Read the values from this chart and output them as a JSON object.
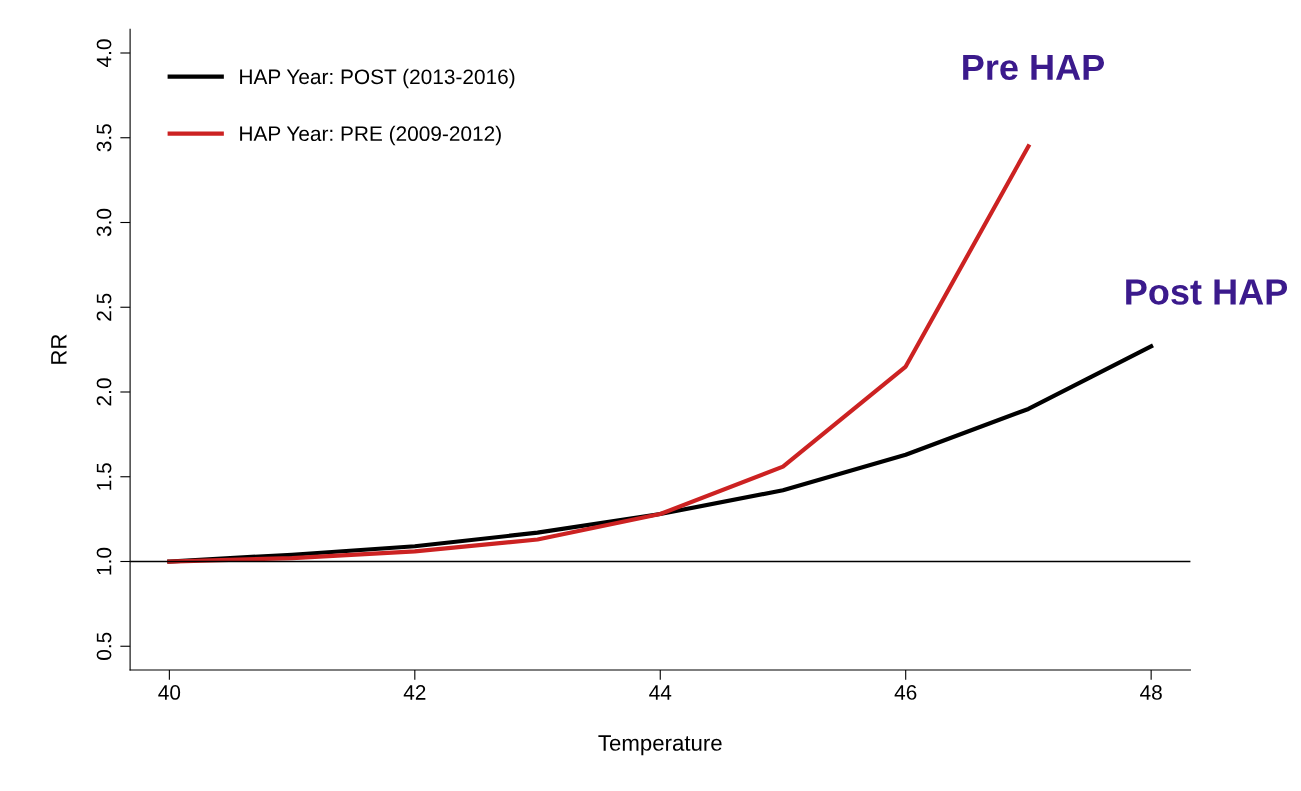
{
  "chart_data": {
    "type": "line",
    "xlabel": "Temperature",
    "ylabel": "RR",
    "x": [
      40,
      41,
      42,
      43,
      44,
      45,
      46,
      47,
      48
    ],
    "series": [
      {
        "name": "HAP Year: POST (2013-2016)",
        "color": "#000000",
        "values": [
          1.0,
          1.04,
          1.09,
          1.17,
          1.28,
          1.42,
          1.63,
          1.9,
          2.27
        ]
      },
      {
        "name": "HAP Year: PRE (2009-2012)",
        "color": "#cc2222",
        "x": [
          40,
          41,
          42,
          43,
          44,
          45,
          46,
          47
        ],
        "values": [
          1.0,
          1.02,
          1.06,
          1.13,
          1.28,
          1.56,
          2.15,
          3.45
        ]
      }
    ],
    "xlim": [
      39.68,
      48.32
    ],
    "xticks": [
      40,
      42,
      44,
      46,
      48
    ],
    "ylim": [
      0.36,
      4.14
    ],
    "yticks": [
      0.5,
      {
        "value": 1,
        "label": "1.0"
      },
      1.5,
      {
        "value": 2,
        "label": "2.0"
      },
      2.5,
      {
        "value": 3,
        "label": "3.0"
      },
      3.5,
      {
        "value": 4,
        "label": "4.0"
      }
    ],
    "ref_lines": [
      {
        "axis": "y",
        "value": 1.0,
        "color": "#000000"
      }
    ],
    "annotations": [
      "Pre HAP",
      "Post HAP"
    ],
    "legend": "top left",
    "grid": false,
    "line_style": "solid",
    "marker": "none"
  }
}
